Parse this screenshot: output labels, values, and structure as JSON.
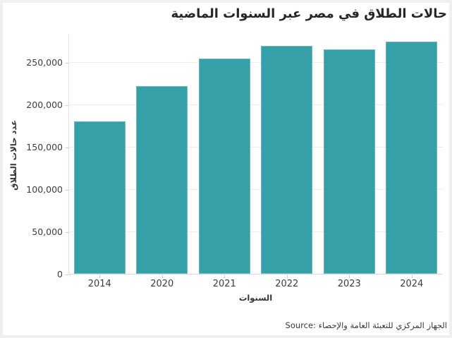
{
  "accent_color": "#36a0a8",
  "frame_color": "#f0f0f0",
  "chart_data": {
    "type": "bar",
    "title": "حالات الطلاق في مصر عبر السنوات الماضية",
    "xlabel": "السنوات",
    "ylabel": "عدد حالات الطلاق",
    "categories": [
      "2014",
      "2020",
      "2021",
      "2022",
      "2023",
      "2024"
    ],
    "values": [
      180000,
      222000,
      254000,
      269000,
      265000,
      274000
    ],
    "ytick_values": [
      0,
      50000,
      100000,
      150000,
      200000,
      250000
    ],
    "ytick_labels": [
      "0",
      "50,000",
      "100,000",
      "150,000",
      "200,000",
      "250,000"
    ],
    "ylim": [
      0,
      284167
    ],
    "grid": true,
    "legend": false,
    "bar_color": "#36a0a8",
    "source": "Source: الجهاز المركزي للتعبئة العامة والإحصاء"
  }
}
